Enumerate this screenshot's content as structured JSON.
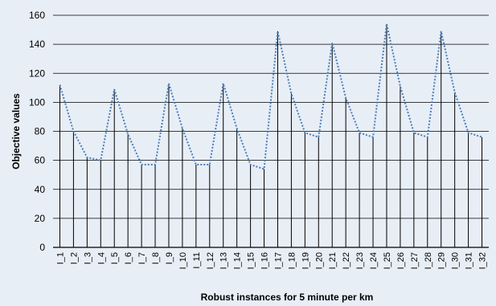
{
  "chart_data": {
    "type": "line",
    "title": "",
    "xlabel": "Robust instances for 5 minute per km",
    "ylabel": "Objective values",
    "ylim": [
      0,
      160
    ],
    "yticks": [
      0,
      20,
      40,
      60,
      80,
      100,
      120,
      140,
      160
    ],
    "grid": true,
    "colors": {
      "background": "#e8eef6",
      "gridline": "#000000",
      "drop_line": "#000000",
      "series_line": "#4a7ebb"
    },
    "categories": [
      "I_1",
      "I_2",
      "I_3",
      "I_4",
      "I_5",
      "I_6",
      "I_7",
      "I_8",
      "I_9",
      "I_10",
      "I_11",
      "I_12",
      "I_13",
      "I_14",
      "I_15",
      "I_16",
      "I_17",
      "I_18",
      "I_19",
      "I_20",
      "I_21",
      "I_22",
      "I_23",
      "I_24",
      "I_25",
      "I_26",
      "I_27",
      "I_28",
      "I_29",
      "I_30",
      "I_31",
      "I_32"
    ],
    "series": [
      {
        "name": "",
        "style": "dotted",
        "values": [
          112,
          80,
          62,
          60,
          109,
          78,
          57,
          57,
          113,
          82,
          57,
          57,
          113,
          82,
          57,
          54,
          149,
          106,
          79,
          76,
          141,
          103,
          79,
          76,
          154,
          111,
          79,
          76,
          149,
          107,
          79,
          76
        ]
      }
    ]
  }
}
